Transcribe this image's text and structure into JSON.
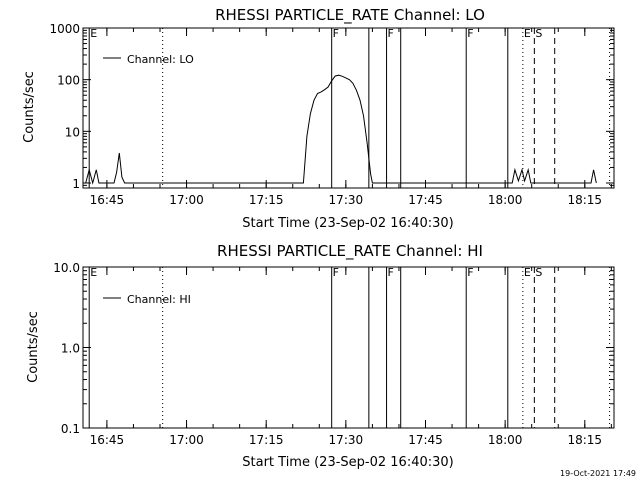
{
  "timestamp": "19-Oct-2021 17:49",
  "chart_data": [
    {
      "type": "line",
      "title": "RHESSI PARTICLE_RATE Channel: LO",
      "xlabel": "Start Time (23-Sep-02 16:40:30)",
      "ylabel": "Counts/sec",
      "xlim": [
        "16:40:30",
        "18:20:30"
      ],
      "xticks": [
        "16:45",
        "17:00",
        "17:15",
        "17:30",
        "17:45",
        "18:00",
        "18:15"
      ],
      "yscale": "log",
      "ylim": [
        0.8,
        1000
      ],
      "yticks": [
        "1",
        "10",
        "100",
        "1000"
      ],
      "legend": "top-left",
      "series": [
        {
          "name": "Channel: LO",
          "points": [
            [
              "16:41:00",
              1
            ],
            [
              "16:41:40",
              1.8
            ],
            [
              "16:42:20",
              1
            ],
            [
              "16:43:00",
              1.8
            ],
            [
              "16:43:30",
              1
            ],
            [
              "16:46:20",
              1
            ],
            [
              "16:46:50",
              1.6
            ],
            [
              "16:47:20",
              3.8
            ],
            [
              "16:47:50",
              1.3
            ],
            [
              "16:48:20",
              1
            ],
            [
              "17:22:00",
              1
            ],
            [
              "17:22:40",
              8
            ],
            [
              "17:23:20",
              22
            ],
            [
              "17:24:00",
              40
            ],
            [
              "17:24:40",
              54
            ],
            [
              "17:25:20",
              58
            ],
            [
              "17:26:00",
              64
            ],
            [
              "17:26:40",
              72
            ],
            [
              "17:27:20",
              95
            ],
            [
              "17:28:00",
              118
            ],
            [
              "17:28:40",
              122
            ],
            [
              "17:29:20",
              116
            ],
            [
              "17:30:00",
              108
            ],
            [
              "17:30:40",
              100
            ],
            [
              "17:31:20",
              85
            ],
            [
              "17:32:00",
              62
            ],
            [
              "17:32:40",
              40
            ],
            [
              "17:33:20",
              20
            ],
            [
              "17:34:00",
              6
            ],
            [
              "17:34:40",
              1.5
            ],
            [
              "17:35:00",
              1
            ],
            [
              "18:01:20",
              1
            ],
            [
              "18:01:50",
              1.8
            ],
            [
              "18:02:30",
              1.1
            ],
            [
              "18:03:10",
              1.8
            ],
            [
              "18:03:40",
              1.1
            ],
            [
              "18:04:20",
              1.8
            ],
            [
              "18:04:50",
              1
            ],
            [
              "18:16:10",
              1
            ],
            [
              "18:16:40",
              1.8
            ],
            [
              "18:17:10",
              1
            ]
          ]
        }
      ],
      "markers": [
        {
          "time": "16:41:40",
          "style": "solid",
          "label": "E"
        },
        {
          "time": "16:55:30",
          "style": "dotted",
          "label": ""
        },
        {
          "time": "17:27:20",
          "style": "solid",
          "label": "F"
        },
        {
          "time": "17:34:20",
          "style": "solid",
          "label": ""
        },
        {
          "time": "17:37:40",
          "style": "solid",
          "label": "F"
        },
        {
          "time": "17:40:20",
          "style": "solid",
          "label": ""
        },
        {
          "time": "17:52:40",
          "style": "solid",
          "label": "F"
        },
        {
          "time": "18:00:30",
          "style": "solid",
          "label": ""
        },
        {
          "time": "18:03:20",
          "style": "dotted",
          "label": "E"
        },
        {
          "time": "18:05:30",
          "style": "dashed",
          "label": "S"
        },
        {
          "time": "18:09:20",
          "style": "dashed",
          "label": ""
        },
        {
          "time": "18:19:40",
          "style": "dotted",
          "label": ""
        }
      ]
    },
    {
      "type": "line",
      "title": "RHESSI PARTICLE_RATE Channel: HI",
      "xlabel": "Start Time (23-Sep-02 16:40:30)",
      "ylabel": "Counts/sec",
      "xlim": [
        "16:40:30",
        "18:20:30"
      ],
      "xticks": [
        "16:45",
        "17:00",
        "17:15",
        "17:30",
        "17:45",
        "18:00",
        "18:15"
      ],
      "yscale": "log",
      "ylim": [
        0.1,
        10
      ],
      "yticks": [
        "0.1",
        "1.0",
        "10.0"
      ],
      "legend": "top-left",
      "series": [
        {
          "name": "Channel: HI",
          "points": []
        }
      ],
      "markers": [
        {
          "time": "16:41:40",
          "style": "solid",
          "label": "E"
        },
        {
          "time": "16:55:30",
          "style": "dotted",
          "label": ""
        },
        {
          "time": "17:27:20",
          "style": "solid",
          "label": "F"
        },
        {
          "time": "17:34:20",
          "style": "solid",
          "label": ""
        },
        {
          "time": "17:37:40",
          "style": "solid",
          "label": "F"
        },
        {
          "time": "17:40:20",
          "style": "solid",
          "label": ""
        },
        {
          "time": "17:52:40",
          "style": "solid",
          "label": "F"
        },
        {
          "time": "18:00:30",
          "style": "solid",
          "label": ""
        },
        {
          "time": "18:03:20",
          "style": "dotted",
          "label": "E"
        },
        {
          "time": "18:05:30",
          "style": "dashed",
          "label": "S"
        },
        {
          "time": "18:09:20",
          "style": "dashed",
          "label": ""
        },
        {
          "time": "18:19:40",
          "style": "dotted",
          "label": ""
        }
      ]
    }
  ]
}
